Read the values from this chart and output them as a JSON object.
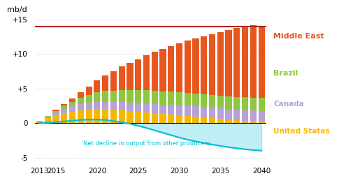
{
  "years": [
    2013,
    2014,
    2015,
    2016,
    2017,
    2018,
    2019,
    2020,
    2021,
    2022,
    2023,
    2024,
    2025,
    2026,
    2027,
    2028,
    2029,
    2030,
    2031,
    2032,
    2033,
    2034,
    2035,
    2036,
    2037,
    2038,
    2039,
    2040
  ],
  "us": [
    0.25,
    0.7,
    1.1,
    1.4,
    1.6,
    1.8,
    1.9,
    2.0,
    2.0,
    1.9,
    1.8,
    1.7,
    1.6,
    1.5,
    1.4,
    1.3,
    1.2,
    1.1,
    1.0,
    0.9,
    0.8,
    0.7,
    0.6,
    0.5,
    0.4,
    0.35,
    0.3,
    0.25
  ],
  "canada": [
    0.1,
    0.25,
    0.45,
    0.65,
    0.8,
    0.95,
    1.05,
    1.15,
    1.2,
    1.25,
    1.3,
    1.3,
    1.35,
    1.4,
    1.4,
    1.4,
    1.45,
    1.45,
    1.5,
    1.5,
    1.5,
    1.5,
    1.5,
    1.5,
    1.5,
    1.5,
    1.5,
    1.5
  ],
  "brazil": [
    0.0,
    0.05,
    0.2,
    0.45,
    0.7,
    0.9,
    1.1,
    1.3,
    1.45,
    1.55,
    1.65,
    1.75,
    1.8,
    1.85,
    1.9,
    1.9,
    1.9,
    1.9,
    1.9,
    1.9,
    1.9,
    1.9,
    1.9,
    1.9,
    1.9,
    1.9,
    1.9,
    1.9
  ],
  "middle_east": [
    0.0,
    0.0,
    0.15,
    0.3,
    0.5,
    0.8,
    1.2,
    1.7,
    2.2,
    2.85,
    3.45,
    4.0,
    4.5,
    5.05,
    5.6,
    6.1,
    6.6,
    7.1,
    7.55,
    7.95,
    8.4,
    8.8,
    9.2,
    9.6,
    9.95,
    10.25,
    10.5,
    10.35
  ],
  "decline_curve": [
    0.0,
    0.05,
    0.15,
    0.25,
    0.35,
    0.45,
    0.5,
    0.5,
    0.45,
    0.3,
    0.1,
    -0.1,
    -0.4,
    -0.7,
    -1.05,
    -1.4,
    -1.75,
    -2.1,
    -2.4,
    -2.65,
    -2.9,
    -3.1,
    -3.3,
    -3.5,
    -3.65,
    -3.8,
    -3.9,
    -4.0
  ],
  "color_us": "#f5b800",
  "color_canada": "#b8a0d8",
  "color_brazil": "#8dc63f",
  "color_middle_east": "#e8561e",
  "color_decline": "#00bcd4",
  "color_hline": "#b22222",
  "bg_color": "#ffffff",
  "annotation_color": "#c0392b",
  "hline_y": 14,
  "yticks": [
    -5,
    0,
    5,
    10,
    15
  ],
  "ytick_labels": [
    "-5",
    "0",
    "+5",
    "+10",
    "+15"
  ],
  "xtick_years": [
    2013,
    2015,
    2020,
    2025,
    2030,
    2035,
    2040
  ],
  "ylabel": "mb/d",
  "ylim": [
    -5.5,
    16.5
  ],
  "legend_labels": [
    "Middle East",
    "Brazil",
    "Canada",
    "United States"
  ],
  "legend_colors": [
    "#e8561e",
    "#8dc63f",
    "#b8a0d8",
    "#f5b800"
  ],
  "decline_label": "Net decline in output from other producers"
}
